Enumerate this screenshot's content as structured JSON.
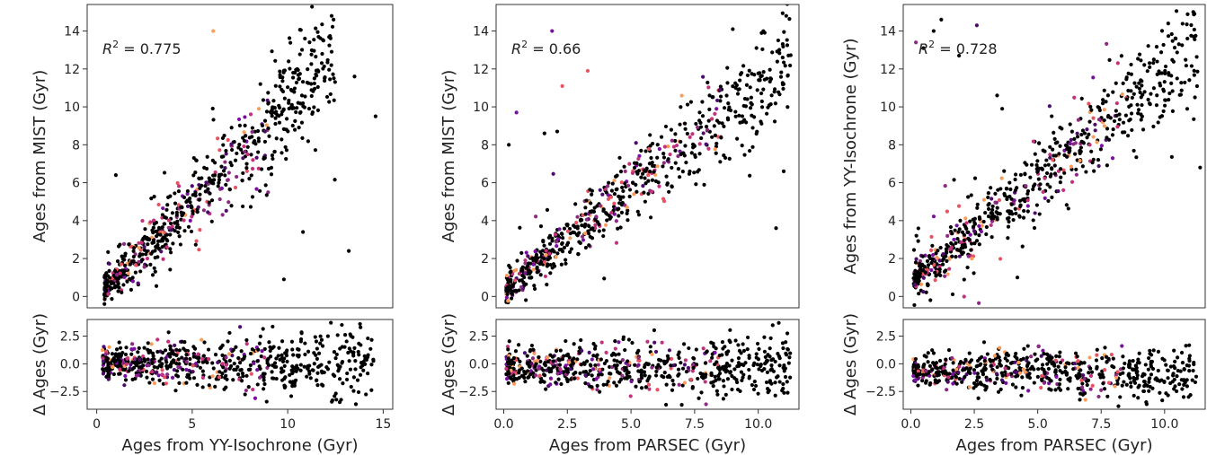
{
  "chart_data": [
    {
      "type": "scatter",
      "panel": "top-left",
      "xlim": [
        -0.5,
        15.5
      ],
      "ylim": [
        -0.6,
        15.4
      ],
      "yticks": [
        0,
        2,
        4,
        6,
        8,
        10,
        12,
        14
      ],
      "xlabel": "",
      "ylabel": "Ages from MIST (Gyr)",
      "annotation": {
        "prefix": "R",
        "sup": "2",
        "suffix": " = 0.775"
      },
      "trend": {
        "slope": 1.0,
        "intercept": 0.0,
        "xmin": 0.4,
        "xmax": 12.5,
        "n": 700
      },
      "highlight_xmax": 9.0,
      "series": [
        {
          "values": [
            [
              14.6,
              9.5
            ],
            [
              13.2,
              2.4
            ],
            [
              11.4,
              11.5
            ],
            [
              9.8,
              0.9
            ],
            [
              10.8,
              3.4
            ],
            [
              6.1,
              14.0
            ],
            [
              1.0,
              6.4
            ],
            [
              12.3,
              14.8
            ],
            [
              12.4,
              14.6
            ],
            [
              10.9,
              13.6
            ],
            [
              13.5,
              11.6
            ]
          ]
        }
      ],
      "grid": false
    },
    {
      "type": "scatter",
      "panel": "top-middle",
      "xlim": [
        -0.3,
        11.6
      ],
      "ylim": [
        -0.6,
        15.4
      ],
      "yticks": [
        0,
        2,
        4,
        6,
        8,
        10,
        12,
        14
      ],
      "xlabel": "",
      "ylabel": "Ages from MIST (Gyr)",
      "annotation": {
        "prefix": "R",
        "sup": "2",
        "suffix": " = 0.66"
      },
      "trend": {
        "slope": 1.08,
        "intercept": 0.3,
        "xmin": 0.1,
        "xmax": 11.3,
        "n": 700
      },
      "highlight_xmax": 8.5,
      "series": [
        {
          "values": [
            [
              1.9,
              14.0
            ],
            [
              2.3,
              11.1
            ],
            [
              3.3,
              11.9
            ],
            [
              0.5,
              9.7
            ],
            [
              1.6,
              8.6
            ],
            [
              10.7,
              3.6
            ],
            [
              11.0,
              6.6
            ],
            [
              11.1,
              14.8
            ],
            [
              9.0,
              14.1
            ],
            [
              2.1,
              8.7
            ],
            [
              0.2,
              8.0
            ]
          ]
        }
      ],
      "grid": false
    },
    {
      "type": "scatter",
      "panel": "top-right",
      "xlim": [
        -0.3,
        11.6
      ],
      "ylim": [
        -0.6,
        15.4
      ],
      "yticks": [
        0,
        2,
        4,
        6,
        8,
        10,
        12,
        14
      ],
      "xlabel": "",
      "ylabel": "Ages from YY-Isochrone (Gyr)",
      "annotation": {
        "prefix": "R",
        "sup": "2",
        "suffix": " = 0.728"
      },
      "trend": {
        "slope": 1.1,
        "intercept": 0.7,
        "xmin": 0.1,
        "xmax": 11.3,
        "n": 700
      },
      "highlight_xmax": 8.5,
      "series": [
        {
          "values": [
            [
              0.2,
              13.4
            ],
            [
              0.5,
              13.1
            ],
            [
              0.9,
              14.0
            ],
            [
              1.2,
              14.6
            ],
            [
              2.6,
              14.3
            ],
            [
              3.4,
              10.6
            ],
            [
              3.6,
              9.9
            ],
            [
              1.9,
              12.7
            ],
            [
              4.2,
              1.0
            ],
            [
              2.4,
              2.0
            ],
            [
              10.9,
              13.6
            ],
            [
              11.4,
              6.8
            ]
          ]
        }
      ],
      "grid": false
    },
    {
      "type": "scatter",
      "panel": "bottom-left",
      "xlim": [
        -0.5,
        15.5
      ],
      "ylim": [
        -4.1,
        4.0
      ],
      "yticks": [
        2.5,
        0.0,
        -2.5
      ],
      "ytick_labels": [
        "2.5",
        "0.0",
        "−2.5"
      ],
      "xticks": [
        0,
        5,
        10,
        15
      ],
      "xtick_labels": [
        "0",
        "5",
        "10",
        "15"
      ],
      "xlabel": "Ages from YY-Isochrone (Gyr)",
      "ylabel": "Δ Ages (Gyr)",
      "residual": {
        "xmin": 0.3,
        "xmax": 14.5,
        "offset": 0.1,
        "spread": 1.3,
        "n": 650
      },
      "highlight_xmax": 9.0,
      "grid": false
    },
    {
      "type": "scatter",
      "panel": "bottom-middle",
      "xlim": [
        -0.3,
        11.6
      ],
      "ylim": [
        -4.1,
        4.0
      ],
      "yticks": [
        2.5,
        0.0,
        -2.5
      ],
      "ytick_labels": [
        "2.5",
        "0.0",
        "−2.5"
      ],
      "xticks": [
        0,
        2.5,
        5,
        7.5,
        10
      ],
      "xtick_labels": [
        "0.0",
        "2.5",
        "5.0",
        "7.5",
        "10.0"
      ],
      "xlabel": "Ages from PARSEC (Gyr)",
      "ylabel": "Δ Ages (Gyr)",
      "residual": {
        "xmin": 0.1,
        "xmax": 11.3,
        "offset": -0.3,
        "spread": 1.4,
        "n": 650
      },
      "highlight_xmax": 8.5,
      "grid": false
    },
    {
      "type": "scatter",
      "panel": "bottom-right",
      "xlim": [
        -0.3,
        11.6
      ],
      "ylim": [
        -4.1,
        4.0
      ],
      "yticks": [
        2.5,
        0.0,
        -2.5
      ],
      "ytick_labels": [
        "2.5",
        "0.0",
        "−2.5"
      ],
      "xticks": [
        0,
        2.5,
        5,
        7.5,
        10
      ],
      "xtick_labels": [
        "0.0",
        "2.5",
        "5.0",
        "7.5",
        "10.0"
      ],
      "xlabel": "Ages from PARSEC (Gyr)",
      "ylabel": "Δ Ages (Gyr)",
      "residual": {
        "xmin": 0.1,
        "xmax": 11.3,
        "offset": -0.7,
        "spread": 1.2,
        "n": 650
      },
      "highlight_xmax": 8.5,
      "grid": false
    }
  ],
  "colors": {
    "base": "#000000",
    "highlights": [
      "#4b0c6b",
      "#8c2981",
      "#c3317c",
      "#e85362",
      "#fb9d59",
      "#7a0ea0"
    ]
  }
}
